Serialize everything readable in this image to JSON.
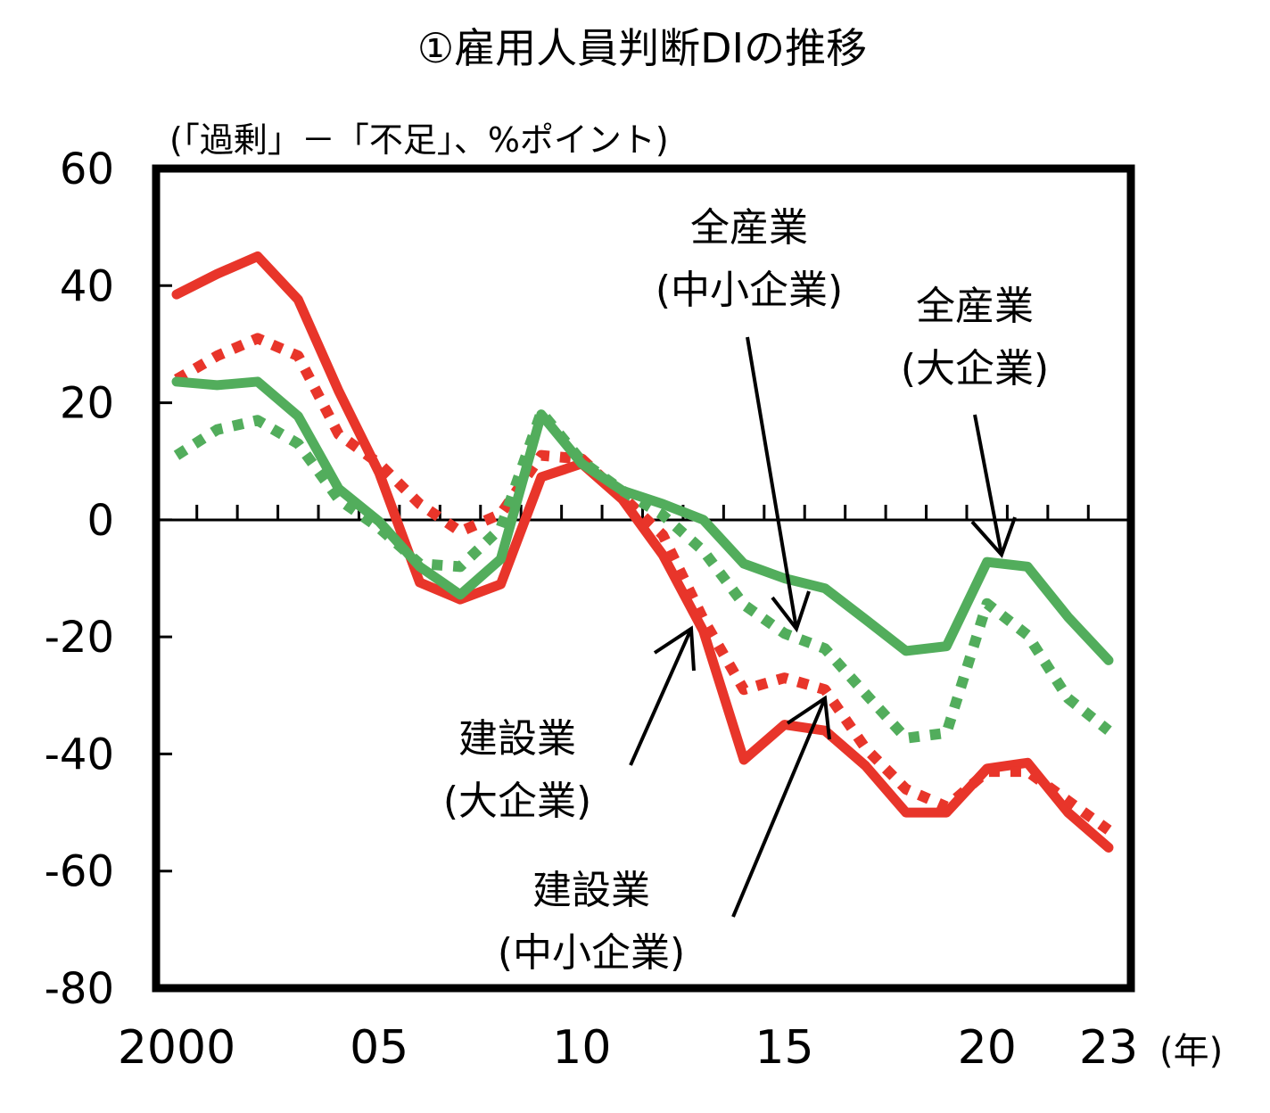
{
  "chart_data": {
    "type": "line",
    "title": "①雇用人員判断DIの推移",
    "ylabel": "(「過剰」－「不足」、%ポイント)",
    "xlabel": "(年)",
    "ylim": [
      -80,
      60
    ],
    "yticks": [
      "60",
      "40",
      "20",
      "0",
      "-20",
      "-40",
      "-60",
      "-80"
    ],
    "ytick_values": [
      60,
      40,
      20,
      0,
      -20,
      -40,
      -60,
      -80
    ],
    "xtick_labels": [
      "2000",
      "05",
      "10",
      "15",
      "20",
      "23"
    ],
    "xtick_values": [
      2000,
      2005,
      2010,
      2015,
      2020,
      2023
    ],
    "x": [
      2000,
      2001,
      2002,
      2003,
      2004,
      2005,
      2006,
      2007,
      2008,
      2009,
      2010,
      2011,
      2012,
      2013,
      2014,
      2015,
      2016,
      2017,
      2018,
      2019,
      2020,
      2021,
      2022,
      2023
    ],
    "grid": false,
    "series": [
      {
        "name": "建設業(大企業)",
        "color": "#e8352a",
        "style": "solid",
        "values": [
          38.5,
          42,
          45,
          37.6,
          22,
          8,
          -10.7,
          -13.6,
          -11,
          7.3,
          9.6,
          3.5,
          -6,
          -19,
          -41,
          -35,
          -36,
          -42,
          -50,
          -50,
          -42.5,
          -41.5,
          -50,
          -56
        ]
      },
      {
        "name": "建設業(中小企業)",
        "color": "#e8352a",
        "style": "dotted",
        "values": [
          24,
          28,
          31,
          28,
          14.6,
          9.6,
          2.7,
          -2,
          1,
          11,
          10.4,
          4,
          -2.6,
          -17,
          -29,
          -27,
          -29,
          -39,
          -46,
          -49,
          -43,
          -43,
          -48,
          -53
        ]
      },
      {
        "name": "全産業(大企業)",
        "color": "#52ad5c",
        "style": "solid",
        "values": [
          23.6,
          23,
          23.6,
          17.7,
          5.3,
          -0.3,
          -8,
          -12.8,
          -6.7,
          18,
          9.6,
          5,
          2.7,
          0,
          -7.5,
          -10,
          -11.7,
          -17,
          -22.4,
          -21.6,
          -7.2,
          -8,
          -16.6,
          -24
        ]
      },
      {
        "name": "全産業(中小企業)",
        "color": "#52ad5c",
        "style": "dotted",
        "values": [
          11,
          15.4,
          17,
          13,
          3.5,
          -1.4,
          -7.5,
          -8,
          -1.4,
          18.4,
          10,
          5,
          0.8,
          -5.3,
          -14.5,
          -19.4,
          -22,
          -29.7,
          -37.3,
          -36.4,
          -14.3,
          -19.7,
          -30.5,
          -36
        ]
      }
    ],
    "annotations": [
      {
        "line1": "全産業",
        "line2": "(中小企業)"
      },
      {
        "line1": "全産業",
        "line2": "(大企業)"
      },
      {
        "line1": "建設業",
        "line2": "(大企業)"
      },
      {
        "line1": "建設業",
        "line2": "(中小企業)"
      }
    ]
  }
}
